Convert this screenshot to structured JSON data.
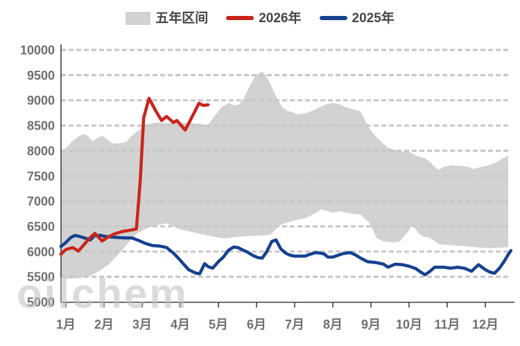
{
  "legend": {
    "items": [
      {
        "label": "五年区间",
        "type": "band",
        "color": "#d2d2d2"
      },
      {
        "label": "2026年",
        "type": "line",
        "color": "#c9251c"
      },
      {
        "label": "2025年",
        "type": "line",
        "color": "#15418f"
      }
    ]
  },
  "watermark": {
    "text": "oilchem"
  },
  "chart_data": {
    "type": "line",
    "title": "",
    "xlabel": "",
    "ylabel": "",
    "x_tick_labels": [
      "1月",
      "2月",
      "3月",
      "4月",
      "5月",
      "6月",
      "7月",
      "8月",
      "9月",
      "10月",
      "11月",
      "12月"
    ],
    "ylim": [
      5000,
      10000
    ],
    "y_ticks": [
      5000,
      5500,
      6000,
      6500,
      7000,
      7500,
      8000,
      8500,
      9000,
      9500,
      10000
    ],
    "grid": "horizontal-dashed",
    "legend_position": "top-center",
    "axis_color": "#3f3f3f",
    "grid_color": "#c8c8c8",
    "label_color": "#6f6f6f",
    "band": {
      "name": "五年区间",
      "color": "#d2d2d2",
      "top": [
        [
          0.87,
          8000
        ],
        [
          1.0,
          8050
        ],
        [
          1.18,
          8200
        ],
        [
          1.36,
          8300
        ],
        [
          1.49,
          8330
        ],
        [
          1.6,
          8280
        ],
        [
          1.69,
          8190
        ],
        [
          1.82,
          8250
        ],
        [
          1.96,
          8300
        ],
        [
          2.13,
          8190
        ],
        [
          2.24,
          8140
        ],
        [
          2.4,
          8150
        ],
        [
          2.58,
          8170
        ],
        [
          2.73,
          8300
        ],
        [
          2.85,
          8370
        ],
        [
          3.0,
          8450
        ],
        [
          3.18,
          8530
        ],
        [
          3.36,
          8560
        ],
        [
          3.64,
          8550
        ],
        [
          3.91,
          8560
        ],
        [
          4.18,
          8550
        ],
        [
          4.45,
          8540
        ],
        [
          4.73,
          8510
        ],
        [
          4.91,
          8700
        ],
        [
          5.09,
          8870
        ],
        [
          5.27,
          8950
        ],
        [
          5.42,
          8900
        ],
        [
          5.55,
          8920
        ],
        [
          5.67,
          9050
        ],
        [
          5.82,
          9280
        ],
        [
          5.96,
          9480
        ],
        [
          6.13,
          9570
        ],
        [
          6.22,
          9520
        ],
        [
          6.33,
          9380
        ],
        [
          6.45,
          9180
        ],
        [
          6.58,
          8980
        ],
        [
          6.69,
          8850
        ],
        [
          6.82,
          8790
        ],
        [
          6.95,
          8760
        ],
        [
          7.09,
          8720
        ],
        [
          7.27,
          8740
        ],
        [
          7.45,
          8790
        ],
        [
          7.64,
          8860
        ],
        [
          7.82,
          8920
        ],
        [
          8.0,
          8950
        ],
        [
          8.18,
          8920
        ],
        [
          8.36,
          8860
        ],
        [
          8.55,
          8820
        ],
        [
          8.73,
          8780
        ],
        [
          8.85,
          8600
        ],
        [
          9.0,
          8400
        ],
        [
          9.15,
          8270
        ],
        [
          9.31,
          8150
        ],
        [
          9.45,
          8060
        ],
        [
          9.64,
          8010
        ],
        [
          9.82,
          7990
        ],
        [
          10.0,
          7980
        ],
        [
          10.18,
          7900
        ],
        [
          10.42,
          7850
        ],
        [
          10.55,
          7780
        ],
        [
          10.67,
          7690
        ],
        [
          10.76,
          7620
        ],
        [
          10.91,
          7680
        ],
        [
          11.09,
          7710
        ],
        [
          11.36,
          7700
        ],
        [
          11.55,
          7680
        ],
        [
          11.69,
          7640
        ],
        [
          11.91,
          7680
        ],
        [
          12.09,
          7710
        ],
        [
          12.27,
          7760
        ],
        [
          12.45,
          7850
        ],
        [
          12.6,
          7900
        ]
      ],
      "bottom": [
        [
          0.87,
          5490
        ],
        [
          1.04,
          5460
        ],
        [
          1.27,
          5470
        ],
        [
          1.49,
          5500
        ],
        [
          1.64,
          5520
        ],
        [
          1.87,
          5610
        ],
        [
          2.13,
          5750
        ],
        [
          2.36,
          5930
        ],
        [
          2.6,
          6140
        ],
        [
          2.85,
          6350
        ],
        [
          3.09,
          6450
        ],
        [
          3.36,
          6520
        ],
        [
          3.64,
          6560
        ],
        [
          3.96,
          6450
        ],
        [
          4.24,
          6400
        ],
        [
          4.64,
          6330
        ],
        [
          4.91,
          6290
        ],
        [
          5.15,
          6260
        ],
        [
          5.45,
          6290
        ],
        [
          5.82,
          6310
        ],
        [
          6.36,
          6330
        ],
        [
          6.6,
          6520
        ],
        [
          6.91,
          6600
        ],
        [
          7.27,
          6660
        ],
        [
          7.55,
          6760
        ],
        [
          7.69,
          6840
        ],
        [
          8.0,
          6770
        ],
        [
          8.18,
          6800
        ],
        [
          8.36,
          6770
        ],
        [
          8.73,
          6730
        ],
        [
          8.96,
          6570
        ],
        [
          9.15,
          6270
        ],
        [
          9.33,
          6200
        ],
        [
          9.58,
          6180
        ],
        [
          9.76,
          6200
        ],
        [
          9.96,
          6380
        ],
        [
          10.09,
          6530
        ],
        [
          10.24,
          6370
        ],
        [
          10.36,
          6300
        ],
        [
          10.55,
          6270
        ],
        [
          10.78,
          6150
        ],
        [
          11.04,
          6130
        ],
        [
          11.4,
          6110
        ],
        [
          11.69,
          6090
        ],
        [
          12.0,
          6070
        ],
        [
          12.31,
          6070
        ],
        [
          12.6,
          6090
        ]
      ]
    },
    "series": [
      {
        "name": "2026年",
        "color": "#c9251c",
        "points": [
          [
            0.87,
            5950
          ],
          [
            1.0,
            6040
          ],
          [
            1.18,
            6080
          ],
          [
            1.33,
            6010
          ],
          [
            1.49,
            6150
          ],
          [
            1.64,
            6280
          ],
          [
            1.76,
            6360
          ],
          [
            1.95,
            6210
          ],
          [
            2.09,
            6280
          ],
          [
            2.27,
            6350
          ],
          [
            2.49,
            6400
          ],
          [
            2.73,
            6430
          ],
          [
            2.85,
            6450
          ],
          [
            2.95,
            7400
          ],
          [
            3.04,
            8650
          ],
          [
            3.18,
            9040
          ],
          [
            3.35,
            8800
          ],
          [
            3.51,
            8600
          ],
          [
            3.64,
            8680
          ],
          [
            3.82,
            8560
          ],
          [
            3.91,
            8600
          ],
          [
            4.13,
            8410
          ],
          [
            4.3,
            8660
          ],
          [
            4.49,
            8940
          ],
          [
            4.6,
            8900
          ],
          [
            4.73,
            8910
          ]
        ]
      },
      {
        "name": "2025年",
        "color": "#15418f",
        "points": [
          [
            0.87,
            6100
          ],
          [
            1.0,
            6180
          ],
          [
            1.13,
            6280
          ],
          [
            1.24,
            6320
          ],
          [
            1.36,
            6300
          ],
          [
            1.49,
            6270
          ],
          [
            1.64,
            6230
          ],
          [
            1.76,
            6320
          ],
          [
            1.91,
            6320
          ],
          [
            2.04,
            6300
          ],
          [
            2.18,
            6290
          ],
          [
            2.36,
            6280
          ],
          [
            2.55,
            6270
          ],
          [
            2.73,
            6270
          ],
          [
            2.91,
            6220
          ],
          [
            3.09,
            6160
          ],
          [
            3.27,
            6120
          ],
          [
            3.45,
            6110
          ],
          [
            3.64,
            6080
          ],
          [
            3.82,
            5970
          ],
          [
            3.96,
            5860
          ],
          [
            4.09,
            5750
          ],
          [
            4.22,
            5640
          ],
          [
            4.33,
            5600
          ],
          [
            4.42,
            5570
          ],
          [
            4.51,
            5560
          ],
          [
            4.64,
            5760
          ],
          [
            4.73,
            5700
          ],
          [
            4.85,
            5670
          ],
          [
            5.0,
            5800
          ],
          [
            5.13,
            5890
          ],
          [
            5.27,
            6030
          ],
          [
            5.4,
            6090
          ],
          [
            5.51,
            6080
          ],
          [
            5.64,
            6030
          ],
          [
            5.76,
            5990
          ],
          [
            5.91,
            5920
          ],
          [
            6.04,
            5880
          ],
          [
            6.15,
            5870
          ],
          [
            6.27,
            6000
          ],
          [
            6.4,
            6200
          ],
          [
            6.51,
            6230
          ],
          [
            6.64,
            6050
          ],
          [
            6.76,
            5970
          ],
          [
            6.87,
            5930
          ],
          [
            7.0,
            5910
          ],
          [
            7.15,
            5910
          ],
          [
            7.27,
            5910
          ],
          [
            7.42,
            5950
          ],
          [
            7.55,
            5980
          ],
          [
            7.67,
            5970
          ],
          [
            7.78,
            5950
          ],
          [
            7.87,
            5890
          ],
          [
            8.0,
            5890
          ],
          [
            8.15,
            5930
          ],
          [
            8.27,
            5960
          ],
          [
            8.45,
            5980
          ],
          [
            8.58,
            5940
          ],
          [
            8.73,
            5870
          ],
          [
            8.91,
            5800
          ],
          [
            9.15,
            5780
          ],
          [
            9.33,
            5750
          ],
          [
            9.45,
            5690
          ],
          [
            9.64,
            5750
          ],
          [
            9.82,
            5740
          ],
          [
            10.0,
            5710
          ],
          [
            10.18,
            5660
          ],
          [
            10.31,
            5590
          ],
          [
            10.42,
            5540
          ],
          [
            10.55,
            5610
          ],
          [
            10.67,
            5690
          ],
          [
            10.91,
            5690
          ],
          [
            11.09,
            5670
          ],
          [
            11.27,
            5690
          ],
          [
            11.45,
            5670
          ],
          [
            11.64,
            5610
          ],
          [
            11.82,
            5740
          ],
          [
            12.0,
            5640
          ],
          [
            12.13,
            5590
          ],
          [
            12.24,
            5570
          ],
          [
            12.36,
            5660
          ],
          [
            12.49,
            5800
          ],
          [
            12.6,
            5940
          ],
          [
            12.67,
            6020
          ]
        ]
      }
    ]
  }
}
